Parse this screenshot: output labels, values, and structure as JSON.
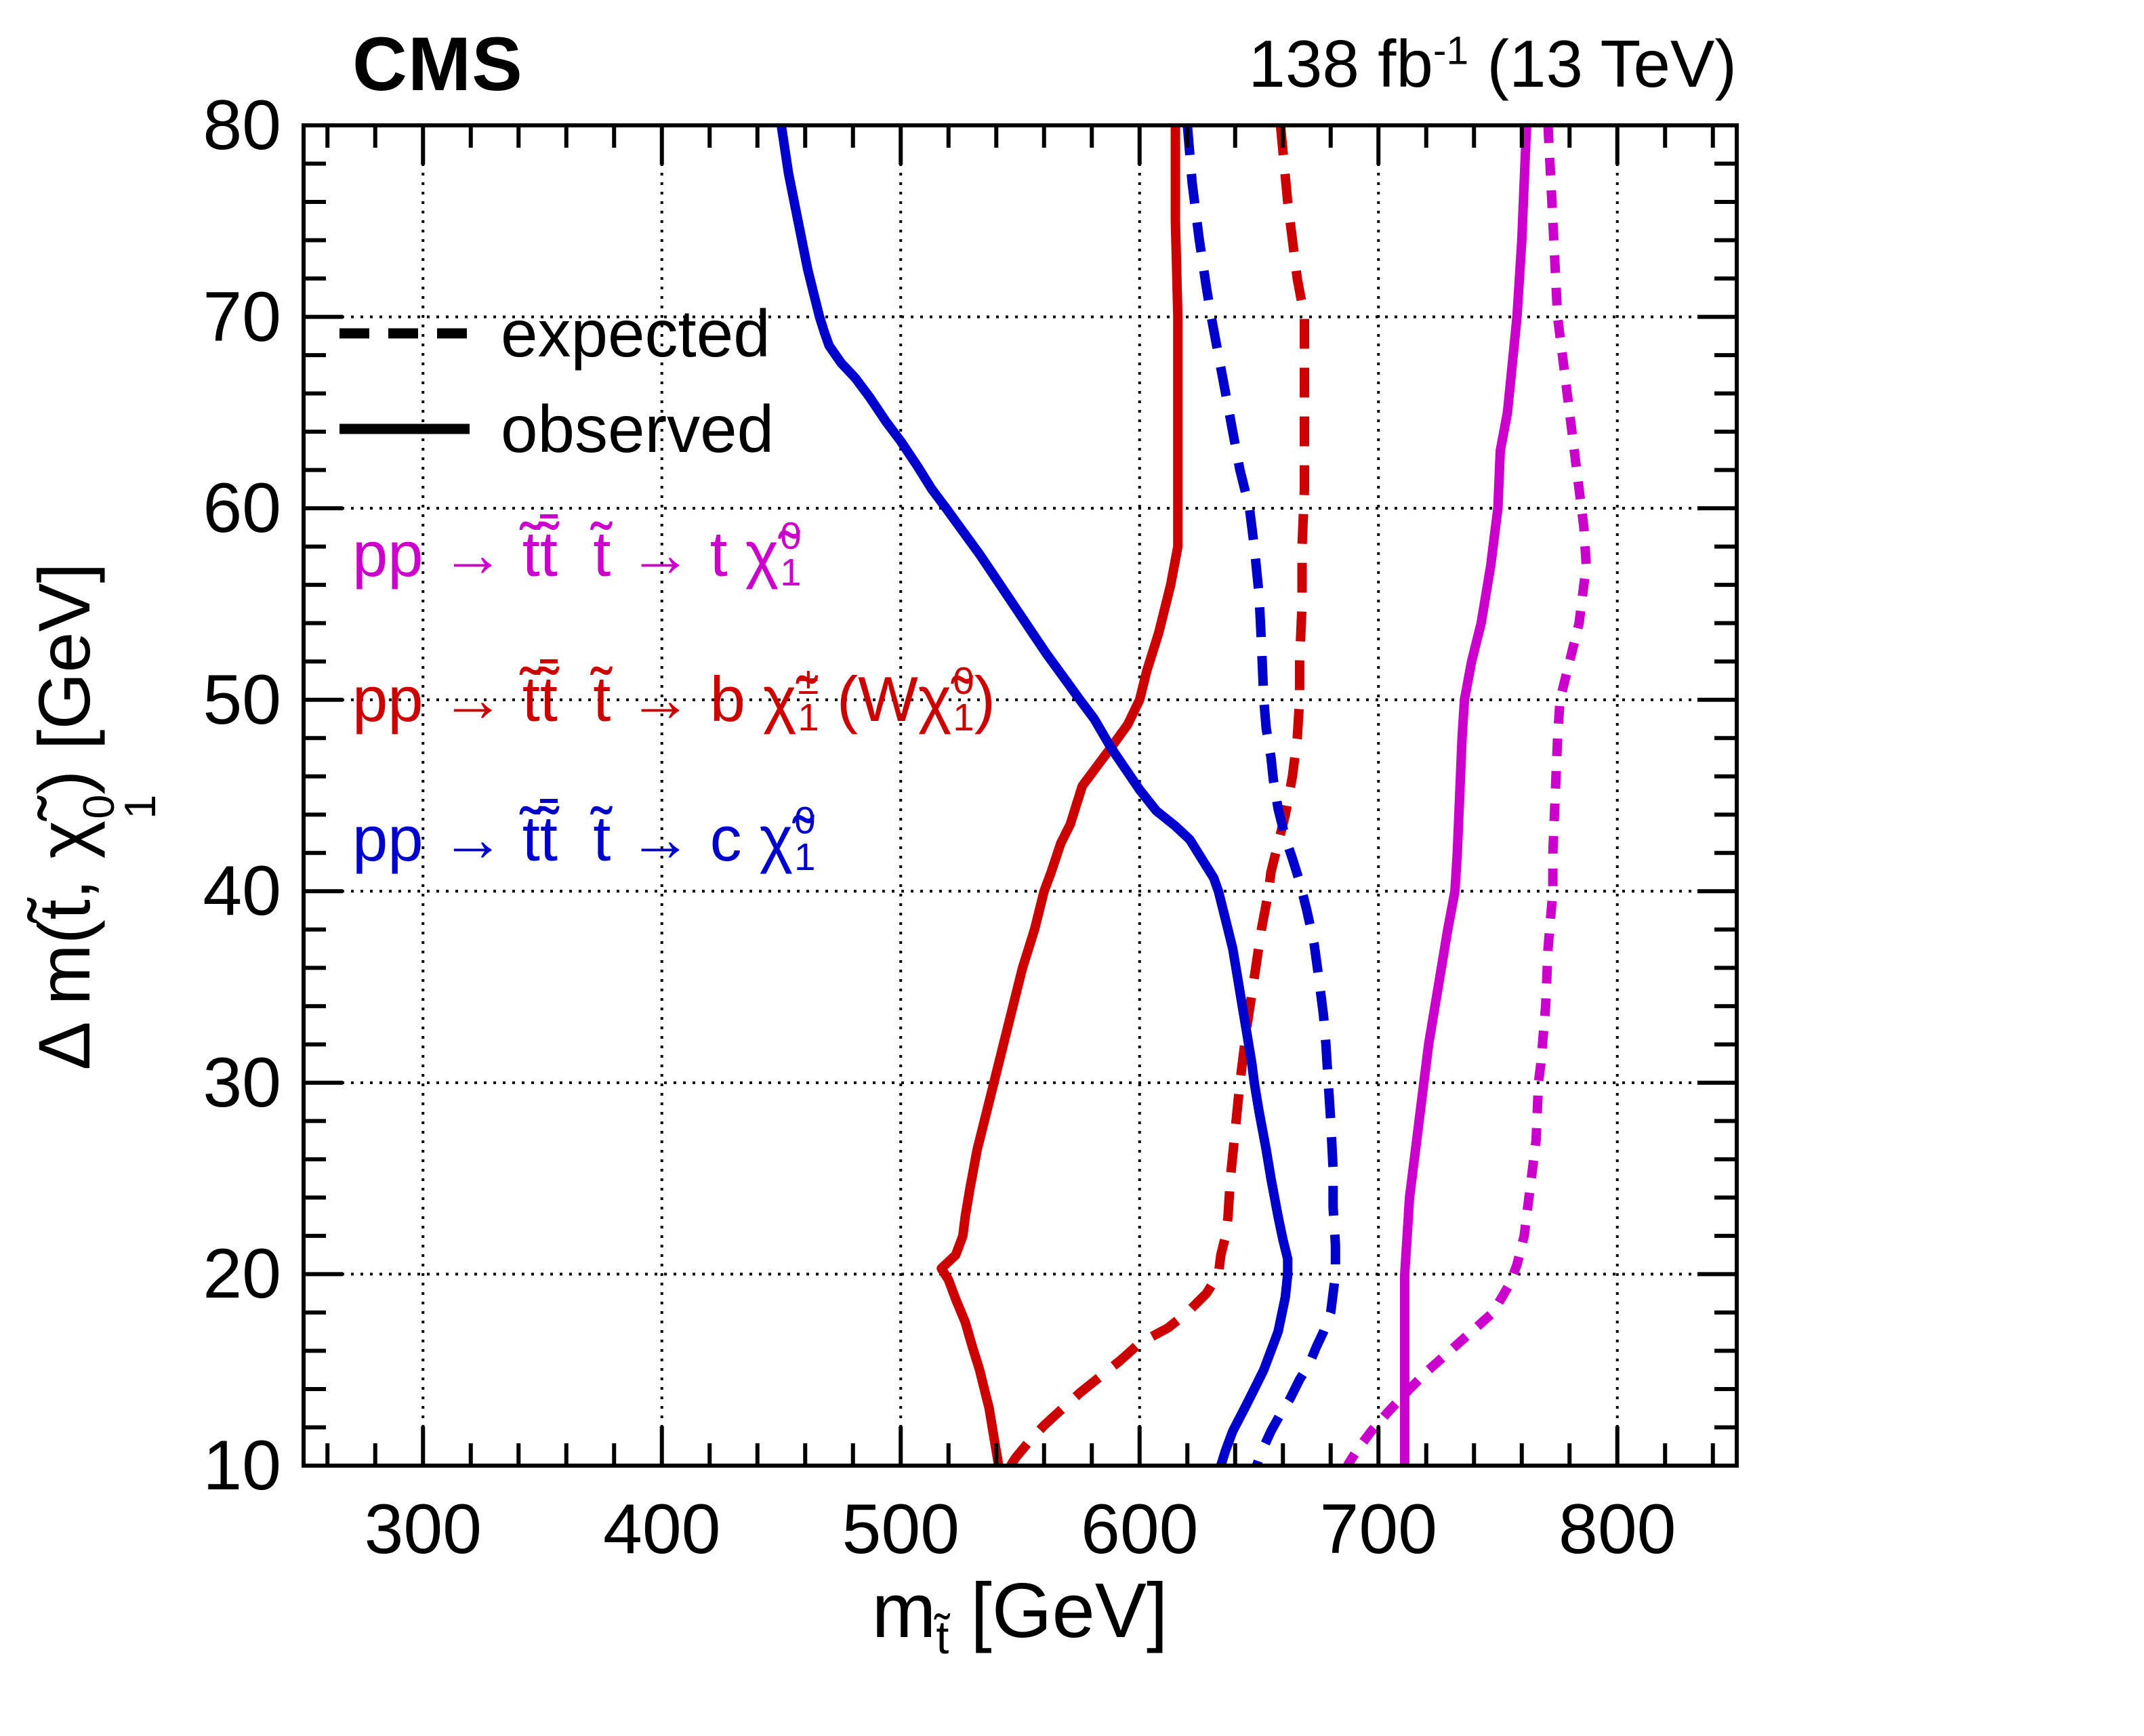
{
  "header": {
    "experiment": "CMS",
    "luminosity_text": "138 fb-1 (13 TeV)",
    "lumi_segments": [
      {
        "t": "138 fb"
      },
      {
        "t": "-1",
        "sup": true
      },
      {
        "t": " (13 TeV)"
      }
    ]
  },
  "legend": {
    "expected_label": "expected",
    "observed_label": "observed"
  },
  "processes": [
    {
      "name": "stop-pair-top-neutralino",
      "color": "#cc00cc",
      "plain": "pp → t̃t̃, t̃ → t χ̃₁⁰",
      "segments": [
        {
          "t": "pp "
        },
        {
          "t": "→"
        },
        {
          "t": " t̃"
        },
        {
          "t": "t̃",
          "bar": true
        },
        {
          "t": "  t̃ "
        },
        {
          "t": "→"
        },
        {
          "t": " t "
        },
        {
          "t": "χ̃"
        },
        {
          "stack": [
            "0",
            "1"
          ]
        }
      ]
    },
    {
      "name": "stop-pair-b-chargino",
      "color": "#cc0000",
      "plain": "pp → t̃t̃, t̃ → b χ̃₁± (Wχ̃₁⁰)",
      "segments": [
        {
          "t": "pp "
        },
        {
          "t": "→"
        },
        {
          "t": " t̃"
        },
        {
          "t": "t̃",
          "bar": true
        },
        {
          "t": "  t̃ "
        },
        {
          "t": "→"
        },
        {
          "t": " b "
        },
        {
          "t": "χ̃"
        },
        {
          "stack": [
            "±",
            "1"
          ]
        },
        {
          "t": " (W"
        },
        {
          "t": "χ̃"
        },
        {
          "stack": [
            "0",
            "1"
          ]
        },
        {
          "t": ")"
        }
      ]
    },
    {
      "name": "stop-pair-charm-neutralino",
      "color": "#0000cc",
      "plain": "pp → t̃t̃, t̃ → c χ̃₁⁰",
      "segments": [
        {
          "t": "pp "
        },
        {
          "t": "→"
        },
        {
          "t": " t̃"
        },
        {
          "t": "t̃",
          "bar": true
        },
        {
          "t": "  t̃ "
        },
        {
          "t": "→"
        },
        {
          "t": " c "
        },
        {
          "t": "χ̃"
        },
        {
          "stack": [
            "0",
            "1"
          ]
        }
      ]
    }
  ],
  "labels": {
    "x_title_plain": "m_t̃ [GeV]",
    "x_title_segments": [
      {
        "t": "m"
      },
      {
        "t": "t̃",
        "sub": true
      },
      {
        "t": " [GeV]"
      }
    ],
    "y_title_plain": "Δ m(t̃, χ̃₁⁰) [GeV]",
    "y_title_segments": [
      {
        "t": "Δ m("
      },
      {
        "t": "t̃"
      },
      {
        "t": ", "
      },
      {
        "t": "χ̃"
      },
      {
        "stack": [
          "0",
          "1"
        ]
      },
      {
        "t": ") [GeV]"
      }
    ]
  },
  "chart_data": {
    "type": "line",
    "title": "CMS",
    "right_annotation": "138 fb-1 (13 TeV)",
    "xlabel": "m_stop [GeV]",
    "ylabel": "Delta m(stop, neutralino_1) [GeV]",
    "xlim": [
      250,
      850
    ],
    "ylim": [
      10,
      80
    ],
    "x_ticks": [
      300,
      400,
      500,
      600,
      700,
      800
    ],
    "y_ticks": [
      10,
      20,
      30,
      40,
      50,
      60,
      70,
      80
    ],
    "x_minor_step": 20,
    "y_minor_step": 2,
    "grid": true,
    "legend_position": "top-left",
    "series": [
      {
        "name": "top-neutralino-observed",
        "process": "pp → t̃t̃, t̃ → t χ̃₁⁰",
        "limit": "observed",
        "color": "#cc00cc",
        "style": "solid",
        "points": [
          [
            762,
            80
          ],
          [
            760,
            74
          ],
          [
            758,
            70
          ],
          [
            754,
            65
          ],
          [
            751,
            63
          ],
          [
            750,
            60
          ],
          [
            747,
            57
          ],
          [
            743,
            54
          ],
          [
            739,
            52
          ],
          [
            736,
            50
          ],
          [
            735,
            48
          ],
          [
            734,
            45
          ],
          [
            733,
            42
          ],
          [
            732,
            40
          ],
          [
            729,
            38
          ],
          [
            725,
            35
          ],
          [
            721,
            32
          ],
          [
            719,
            30
          ],
          [
            716,
            27
          ],
          [
            713,
            24
          ],
          [
            712,
            22
          ],
          [
            711,
            20
          ],
          [
            711,
            16
          ],
          [
            711,
            13
          ],
          [
            711,
            10
          ]
        ]
      },
      {
        "name": "top-neutralino-expected",
        "process": "pp → t̃t̃, t̃ → t χ̃₁⁰",
        "limit": "expected",
        "color": "#cc00cc",
        "style": "dashed",
        "dash": [
          26,
          22
        ],
        "points": [
          [
            771,
            80
          ],
          [
            773,
            75
          ],
          [
            775,
            70
          ],
          [
            778,
            67
          ],
          [
            781,
            64
          ],
          [
            784,
            61
          ],
          [
            786,
            59
          ],
          [
            787,
            57
          ],
          [
            784,
            54
          ],
          [
            780,
            52
          ],
          [
            776,
            50
          ],
          [
            775,
            48
          ],
          [
            774,
            45
          ],
          [
            773,
            42
          ],
          [
            773,
            40
          ],
          [
            771,
            37
          ],
          [
            770,
            34
          ],
          [
            768,
            31
          ],
          [
            767,
            30
          ],
          [
            766,
            27
          ],
          [
            763,
            24
          ],
          [
            761,
            22
          ],
          [
            758,
            20.5
          ],
          [
            755,
            19.5
          ],
          [
            748,
            18
          ],
          [
            739,
            17
          ],
          [
            730,
            16
          ],
          [
            721,
            15
          ],
          [
            713,
            14
          ],
          [
            704,
            12.8
          ],
          [
            697,
            11.8
          ],
          [
            691,
            10.8
          ],
          [
            687,
            10
          ]
        ]
      },
      {
        "name": "b-chargino-observed",
        "process": "pp → t̃t̃, t̃ → b χ̃₁± (Wχ̃₁⁰)",
        "limit": "observed",
        "color": "#cc0000",
        "style": "solid",
        "points": [
          [
            615,
            80
          ],
          [
            615,
            75
          ],
          [
            616,
            70
          ],
          [
            616,
            65
          ],
          [
            616,
            60
          ],
          [
            616,
            58
          ],
          [
            613,
            56
          ],
          [
            608,
            53.5
          ],
          [
            603,
            51.5
          ],
          [
            600,
            50
          ],
          [
            595,
            48.7
          ],
          [
            588,
            47.5
          ],
          [
            582,
            46.5
          ],
          [
            576,
            45.5
          ],
          [
            571,
            43.5
          ],
          [
            567,
            42.5
          ],
          [
            563,
            41
          ],
          [
            560,
            40
          ],
          [
            556,
            38
          ],
          [
            551,
            36
          ],
          [
            547,
            34
          ],
          [
            543,
            32
          ],
          [
            539,
            30
          ],
          [
            536,
            28.5
          ],
          [
            532,
            26.5
          ],
          [
            529,
            24.5
          ],
          [
            527,
            23
          ],
          [
            526,
            22
          ],
          [
            523,
            21
          ],
          [
            517,
            20.3
          ],
          [
            520,
            19.7
          ],
          [
            523,
            18.7
          ],
          [
            527,
            17.5
          ],
          [
            530,
            16.2
          ],
          [
            533,
            15
          ],
          [
            535,
            14
          ],
          [
            537,
            13
          ],
          [
            539,
            11.5
          ],
          [
            541,
            10
          ]
        ]
      },
      {
        "name": "b-chargino-expected",
        "process": "pp → t̃t̃, t̃ → b χ̃₁± (Wχ̃₁⁰)",
        "limit": "expected",
        "color": "#cc0000",
        "style": "dashed",
        "dash": [
          44,
          28
        ],
        "points": [
          [
            659,
            80
          ],
          [
            662,
            76
          ],
          [
            666,
            72
          ],
          [
            669,
            70
          ],
          [
            669,
            67
          ],
          [
            669,
            64
          ],
          [
            669,
            61
          ],
          [
            668,
            58
          ],
          [
            668,
            55
          ],
          [
            667,
            52
          ],
          [
            667,
            50
          ],
          [
            666,
            48
          ],
          [
            664,
            46
          ],
          [
            661,
            44
          ],
          [
            658,
            42.5
          ],
          [
            655,
            41
          ],
          [
            654,
            40
          ],
          [
            651,
            38
          ],
          [
            648,
            35.5
          ],
          [
            645,
            33
          ],
          [
            643,
            31
          ],
          [
            642,
            30
          ],
          [
            640,
            27.5
          ],
          [
            638,
            25
          ],
          [
            637,
            23
          ],
          [
            636,
            22
          ],
          [
            634,
            21
          ],
          [
            633,
            20
          ],
          [
            628,
            19
          ],
          [
            620,
            18
          ],
          [
            612,
            17.2
          ],
          [
            606,
            16.8
          ],
          [
            600,
            16.4
          ],
          [
            592,
            15.5
          ],
          [
            583,
            14.6
          ],
          [
            575,
            13.8
          ],
          [
            567,
            12.9
          ],
          [
            560,
            12.1
          ],
          [
            554,
            11.3
          ],
          [
            548,
            10.4
          ],
          [
            546,
            10
          ]
        ]
      },
      {
        "name": "charm-neutralino-observed",
        "process": "pp → t̃t̃, t̃ → c χ̃₁⁰",
        "limit": "observed",
        "color": "#0000cc",
        "style": "solid",
        "points": [
          [
            450,
            80
          ],
          [
            453,
            77.5
          ],
          [
            457,
            75
          ],
          [
            461,
            72.5
          ],
          [
            464,
            71
          ],
          [
            466,
            70
          ],
          [
            468,
            69.2
          ],
          [
            470,
            68.5
          ],
          [
            475,
            67.6
          ],
          [
            481,
            66.8
          ],
          [
            487,
            65.8
          ],
          [
            494,
            64.5
          ],
          [
            500,
            63.5
          ],
          [
            507,
            62.2
          ],
          [
            513,
            61
          ],
          [
            519,
            60
          ],
          [
            526,
            58.8
          ],
          [
            533,
            57.6
          ],
          [
            540,
            56.3
          ],
          [
            547,
            55
          ],
          [
            554,
            53.7
          ],
          [
            561,
            52.4
          ],
          [
            568,
            51.2
          ],
          [
            575,
            50
          ],
          [
            581,
            49
          ],
          [
            588,
            47.5
          ],
          [
            594,
            46.4
          ],
          [
            600,
            45.3
          ],
          [
            607,
            44.2
          ],
          [
            615,
            43.4
          ],
          [
            621,
            42.7
          ],
          [
            627,
            41.5
          ],
          [
            631,
            40.7
          ],
          [
            633,
            40
          ],
          [
            636,
            38.5
          ],
          [
            639,
            37
          ],
          [
            641,
            35.5
          ],
          [
            643,
            34
          ],
          [
            645,
            32.5
          ],
          [
            647,
            31
          ],
          [
            648,
            30
          ],
          [
            650,
            28.5
          ],
          [
            653,
            26.5
          ],
          [
            655,
            25
          ],
          [
            658,
            23
          ],
          [
            660,
            21.8
          ],
          [
            662,
            20.8
          ],
          [
            662,
            20
          ],
          [
            661,
            18.8
          ],
          [
            658,
            17
          ],
          [
            655,
            16
          ],
          [
            652,
            15
          ],
          [
            648,
            14
          ],
          [
            644,
            13
          ],
          [
            639,
            11.8
          ],
          [
            636,
            10.8
          ],
          [
            634,
            10
          ]
        ]
      },
      {
        "name": "charm-neutralino-expected",
        "process": "pp → t̃t̃, t̃ → c χ̃₁⁰",
        "limit": "expected",
        "color": "#0000cc",
        "style": "dashed",
        "dash": [
          44,
          28
        ],
        "points": [
          [
            620,
            80
          ],
          [
            622,
            77
          ],
          [
            625,
            74
          ],
          [
            628,
            71.5
          ],
          [
            630,
            70
          ],
          [
            633,
            68
          ],
          [
            636,
            66
          ],
          [
            639,
            64
          ],
          [
            642,
            62
          ],
          [
            645,
            60.5
          ],
          [
            646,
            60
          ],
          [
            648,
            58
          ],
          [
            650,
            55.5
          ],
          [
            651,
            53
          ],
          [
            652,
            50
          ],
          [
            653,
            48.5
          ],
          [
            655,
            47
          ],
          [
            656,
            45.8
          ],
          [
            658,
            44.3
          ],
          [
            661,
            42.8
          ],
          [
            664,
            41.7
          ],
          [
            667,
            40.5
          ],
          [
            668,
            40
          ],
          [
            670,
            39
          ],
          [
            673,
            37.3
          ],
          [
            675,
            35.5
          ],
          [
            677,
            33.5
          ],
          [
            678,
            32
          ],
          [
            679,
            30
          ],
          [
            680,
            28
          ],
          [
            681,
            25.5
          ],
          [
            681,
            23.5
          ],
          [
            682,
            21.5
          ],
          [
            682,
            20
          ],
          [
            681,
            19
          ],
          [
            680,
            18
          ],
          [
            677,
            17
          ],
          [
            674,
            16.2
          ],
          [
            671,
            15.3
          ],
          [
            667,
            14.5
          ],
          [
            663,
            13.5
          ],
          [
            659,
            12.7
          ],
          [
            655,
            11.8
          ],
          [
            651,
            10.7
          ],
          [
            649,
            10
          ]
        ]
      }
    ]
  }
}
